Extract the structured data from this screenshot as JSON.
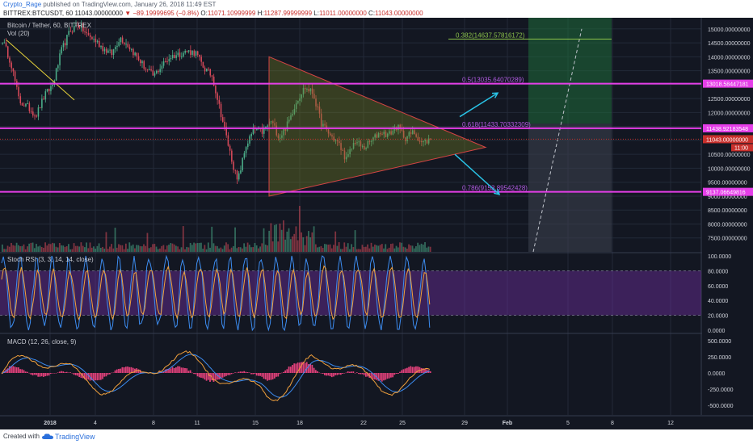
{
  "header": {
    "publisher": "Crypto_Rage",
    "published_text": "published on TradingView.com, January 26, 2018 11:49 EST",
    "symbol": "BITTREX:BTCUSDT, 60",
    "last": "11043.00000000",
    "change": "▼ −89.19999695 (−0.8%)",
    "o_label": "O:",
    "o_value": "11071.10999999",
    "h_label": "H:",
    "h_value": "11287.99999999",
    "l_label": "L:",
    "l_value": "11011.00000000",
    "c_label": "C:",
    "c_value": "11043.00000000"
  },
  "footer": {
    "created_with": "Created with",
    "brand": "TradingView"
  },
  "colors": {
    "background": "#131722",
    "up": "#4caf8a",
    "down": "#d84a5a",
    "fib_line": "#e53ee8",
    "triangle": "#d44444",
    "arrow": "#29c3e6",
    "rsi_band": "#6e2fa0",
    "macd_line": "#f0a03c",
    "signal_line": "#3c8cf0",
    "hist": "#e0407a"
  },
  "chart_data": {
    "type": "line",
    "title": "Bitcoin / Tether, 60, BITTREX",
    "volume_label": "Vol (20)",
    "price_axis": {
      "ylim": [
        7000,
        15400
      ],
      "ticks": [
        "15000.00000000",
        "14500.00000000",
        "14000.00000000",
        "13500.00000000",
        "13000.00000000",
        "12500.00000000",
        "12000.00000000",
        "11500.00000000",
        "11000.00000000",
        "10500.00000000",
        "10000.00000000",
        "9500.00000000",
        "9000.00000000",
        "8500.00000000",
        "8000.00000000",
        "7500.00000000"
      ]
    },
    "x_ticks": [
      "2018",
      "4",
      "8",
      "11",
      "15",
      "18",
      "22",
      "25",
      "29",
      "Feb",
      "5",
      "8",
      "12"
    ],
    "price_points": [
      14600,
      13800,
      12400,
      12200,
      11900,
      12600,
      13000,
      14200,
      14900,
      15200,
      14800,
      14600,
      14300,
      14100,
      14700,
      14400,
      14000,
      13600,
      13300,
      13700,
      14000,
      14100,
      14200,
      14150,
      13600,
      13300,
      12000,
      10700,
      9500,
      10800,
      11400,
      11300,
      11700,
      11100,
      11600,
      12400,
      12900,
      12700,
      11600,
      11200,
      10900,
      10300,
      11000,
      10700,
      11000,
      11300,
      11200,
      11500,
      11100,
      11300,
      10900,
      11043
    ],
    "fib_levels": [
      {
        "label": "0.382(14637.57816172)",
        "value": 14637.578
      },
      {
        "label": "0.5(13035.64070289)",
        "value": 13035.641,
        "tag": "13018.58447181"
      },
      {
        "label": "0.618(11433.70332309)",
        "value": 11433.703,
        "tag": "11438.92183548"
      },
      {
        "label": "0.786(9153.89542428)",
        "value": 9153.895,
        "tag": "9137.06649816"
      }
    ],
    "last_tag": "11043.00000000",
    "countdown_tag": "11:00",
    "stoch_rsi": {
      "label": "Stoch RSI (3, 3, 14, 14, close)",
      "ylim": [
        0,
        100
      ],
      "ticks": [
        "100.0000",
        "80.0000",
        "60.0000",
        "40.0000",
        "20.0000",
        "0.0000"
      ]
    },
    "macd": {
      "label": "MACD (12, 26, close, 9)",
      "ylim": [
        -650,
        600
      ],
      "ticks": [
        "500.0000",
        "250.0000",
        "0.0000",
        "-250.0000",
        "-500.0000"
      ]
    }
  }
}
